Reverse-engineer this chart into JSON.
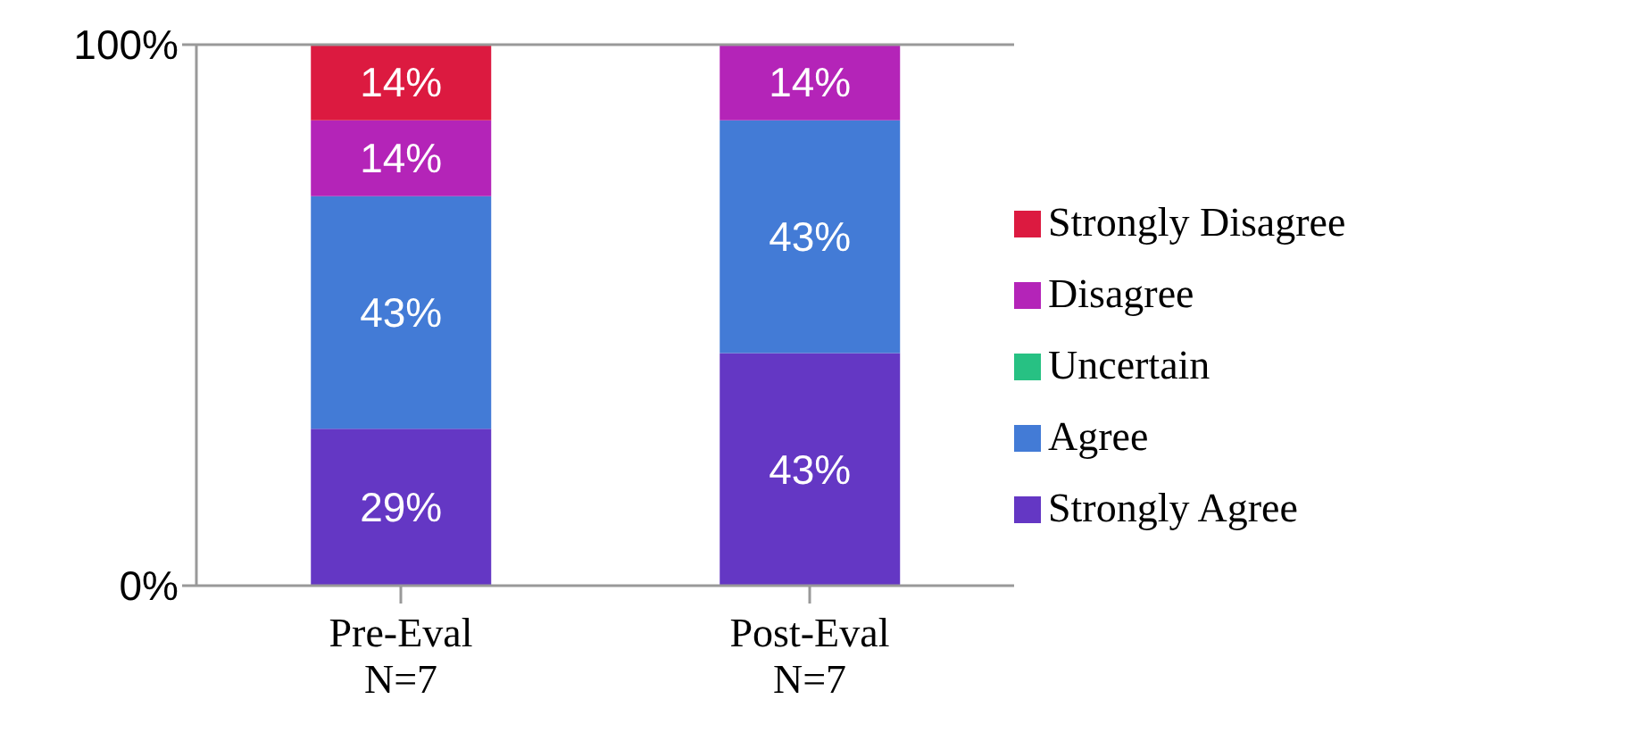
{
  "chart_data": {
    "type": "bar",
    "stacked": true,
    "categories": [
      "Pre-Eval\nN=7",
      "Post-Eval\nN=7"
    ],
    "series": [
      {
        "name": "Strongly Agree",
        "color": "#6437c4",
        "values": [
          29,
          43
        ],
        "value_labels": [
          "29%",
          "43%"
        ]
      },
      {
        "name": "Agree",
        "color": "#437bd6",
        "values": [
          43,
          43
        ],
        "value_labels": [
          "43%",
          "43%"
        ]
      },
      {
        "name": "Uncertain",
        "color": "#27c183",
        "values": [
          0,
          0
        ],
        "value_labels": [
          null,
          null
        ]
      },
      {
        "name": "Disagree",
        "color": "#b424b8",
        "values": [
          14,
          14
        ],
        "value_labels": [
          "14%",
          "14%"
        ]
      },
      {
        "name": "Strongly Disagree",
        "color": "#dc1a40",
        "values": [
          14,
          0
        ],
        "value_labels": [
          "14%",
          null
        ]
      }
    ],
    "ylim": [
      0,
      100
    ],
    "yticks": [
      {
        "value": 0,
        "label": "0%"
      },
      {
        "value": 100,
        "label": "100%"
      }
    ],
    "legend": "right"
  }
}
